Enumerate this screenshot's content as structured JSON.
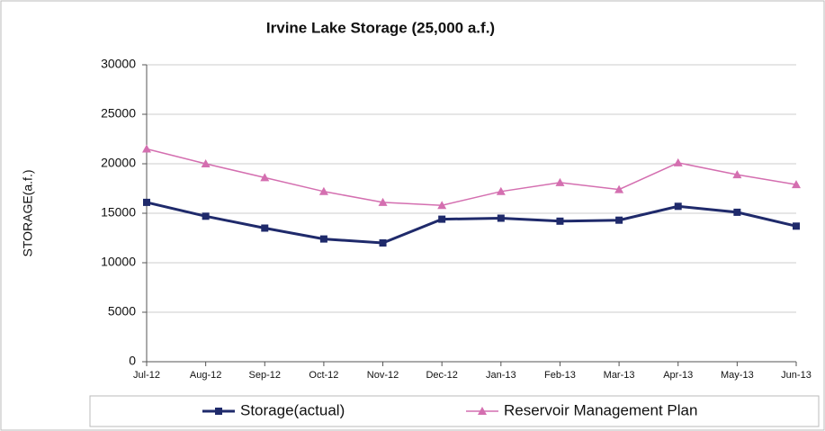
{
  "chart_data": {
    "type": "line",
    "title": "Irvine Lake Storage (25,000 a.f.)",
    "y_label": "STORAGE(a.f.)",
    "categories": [
      "Jul-12",
      "Aug-12",
      "Sep-12",
      "Oct-12",
      "Nov-12",
      "Dec-12",
      "Jan-13",
      "Feb-13",
      "Mar-13",
      "Apr-13",
      "May-13",
      "Jun-13"
    ],
    "series": [
      {
        "name": "Storage(actual)",
        "color": "#1f2a6b",
        "marker": "square",
        "values": [
          16100,
          14700,
          13500,
          12400,
          12000,
          14400,
          14500,
          14200,
          14300,
          15700,
          15100,
          13700
        ]
      },
      {
        "name": "Reservoir Management Plan",
        "color": "#d46fb0",
        "marker": "triangle",
        "values": [
          21500,
          20000,
          18600,
          17200,
          16100,
          15800,
          17200,
          18100,
          17400,
          20100,
          18900,
          17900
        ]
      }
    ],
    "ylim": [
      0,
      30000
    ],
    "yticks": [
      0,
      5000,
      10000,
      15000,
      20000,
      25000,
      30000
    ],
    "grid": true,
    "legend": "bottom"
  }
}
